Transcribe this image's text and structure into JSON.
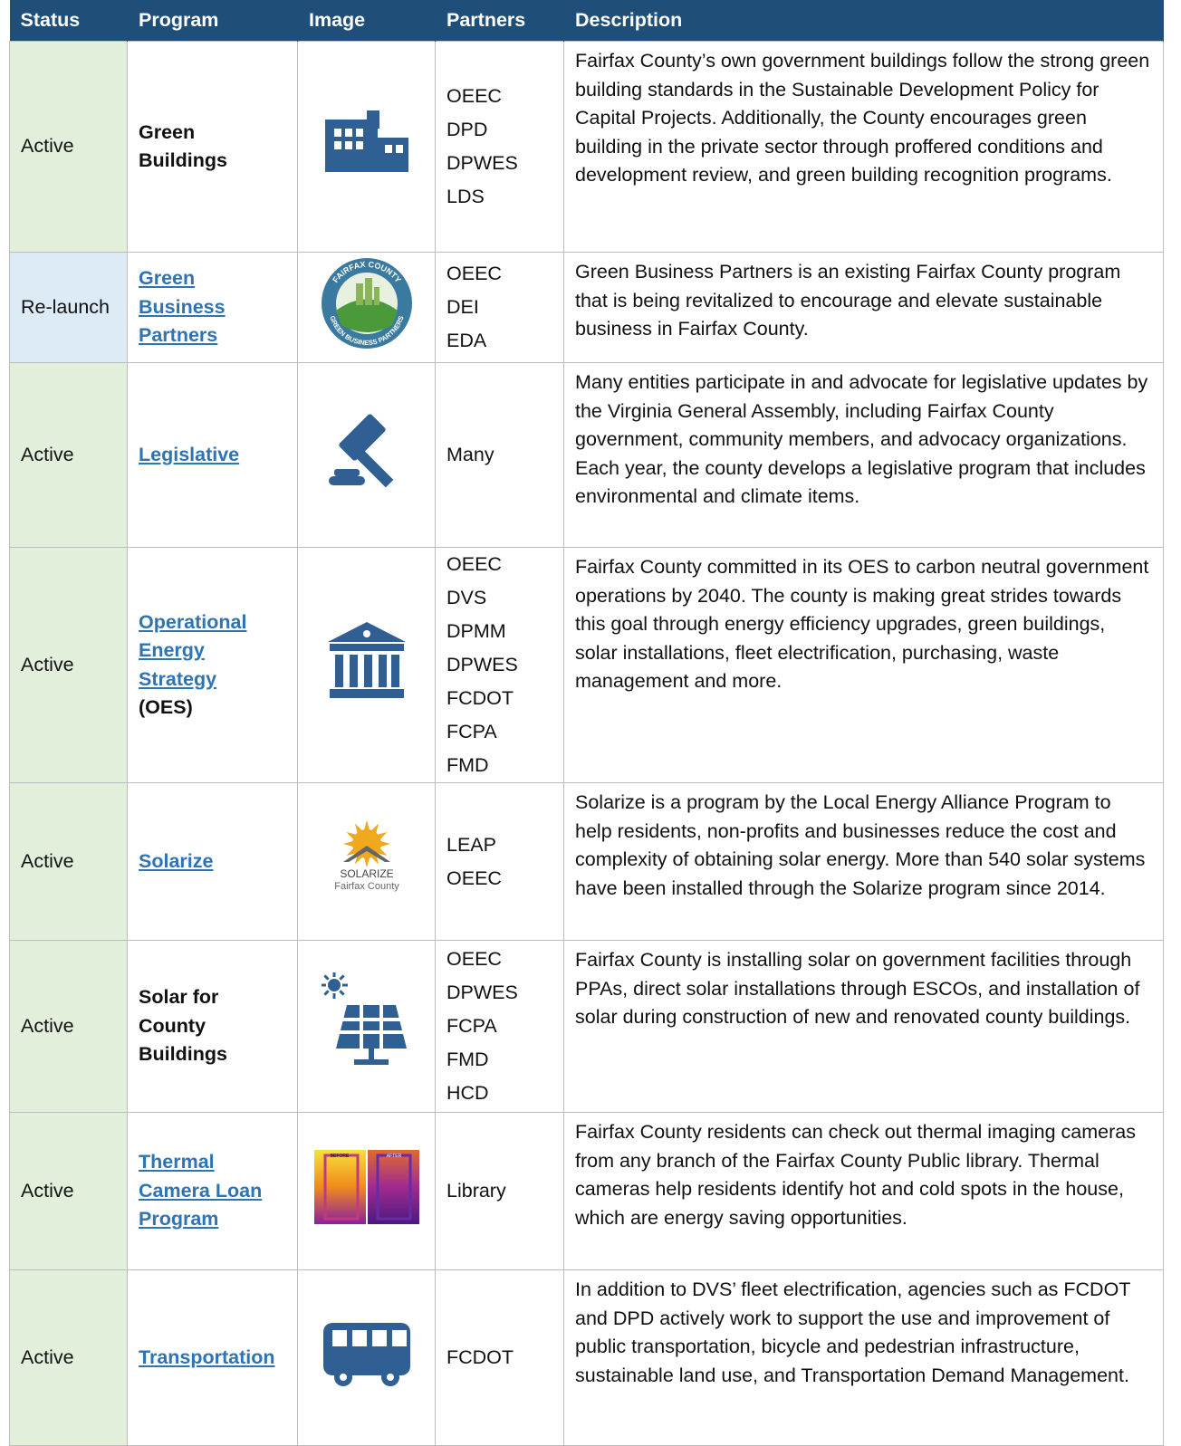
{
  "table": {
    "header": [
      "Status",
      "Program",
      "Image",
      "Partners",
      "Description"
    ],
    "rows": [
      {
        "status": "Active",
        "program": {
          "text": "Green Buildings"
        },
        "partners": [
          "OEEC",
          "DPD",
          "DPWES",
          "LDS"
        ],
        "description": "Fairfax County’s own government buildings follow the strong green building standards in the Sustainable Development Policy for Capital Projects. Additionally, the County encourages green building in the private sector through proffered conditions and development review, and green building recognition programs."
      },
      {
        "status": "Re-launch",
        "program": {
          "link": "Green Business Partners"
        },
        "partners": [
          "OEEC",
          "DEI",
          "EDA"
        ],
        "image_text": [
          "FAIRFAX COUNTY",
          "GREEN BUSINESS PARTNERS"
        ],
        "description": "Green Business Partners is an existing Fairfax County program that is being revitalized to encourage and elevate sustainable business in Fairfax County."
      },
      {
        "status": "Active",
        "program": {
          "link": "Legislative"
        },
        "partners": [
          "Many"
        ],
        "description": "Many entities participate in and advocate for legislative updates by the Virginia General Assembly, including Fairfax County government, community members, and advocacy organizations. Each year, the county develops a legislative program that includes environmental and climate items."
      },
      {
        "status": "Active",
        "program": {
          "link": "Operational Energy Strategy",
          "text": "(OES)"
        },
        "partners": [
          "OEEC",
          "DVS",
          "DPMM",
          "DPWES",
          "FCDOT",
          "FCPA",
          "FMD"
        ],
        "description": "Fairfax County committed in its OES to carbon neutral government operations by 2040. The county is making great strides towards this goal through energy efficiency upgrades, green buildings, solar installations, fleet electrification, purchasing, waste management and more."
      },
      {
        "status": "Active",
        "program": {
          "link": "Solarize"
        },
        "partners": [
          "LEAP",
          "OEEC"
        ],
        "image_text": [
          "SOLARIZE",
          "Fairfax County"
        ],
        "description": "Solarize is a program by the Local Energy Alliance Program to help residents, non-profits and businesses reduce the cost and complexity of obtaining solar energy. More than 540 solar systems have been installed through the Solarize program since 2014."
      },
      {
        "status": "Active",
        "program": {
          "text": "Solar for County Buildings"
        },
        "partners": [
          "OEEC",
          "DPWES",
          "FCPA",
          "FMD",
          "HCD"
        ],
        "description": "Fairfax County is installing solar on government facilities through PPAs, direct solar installations through ESCOs, and installation of solar during construction of new and renovated county buildings."
      },
      {
        "status": "Active",
        "program": {
          "link": "Thermal Camera Loan Program"
        },
        "partners": [
          "Library"
        ],
        "image_text": [
          "BEFORE",
          "AFTER"
        ],
        "description": "Fairfax County residents can check out thermal imaging cameras from any branch of the Fairfax County Public library. Thermal cameras help residents identify hot and cold spots in the house, which are energy saving opportunities."
      },
      {
        "status": "Active",
        "program": {
          "link": "Transportation"
        },
        "partners": [
          "FCDOT"
        ],
        "description": "In addition to DVS’ fleet electrification, agencies such as FCDOT and DPD actively work to support the use and improvement of public transportation, bicycle and pedestrian infrastructure, sustainable land use, and Transportation Demand Management."
      }
    ]
  }
}
